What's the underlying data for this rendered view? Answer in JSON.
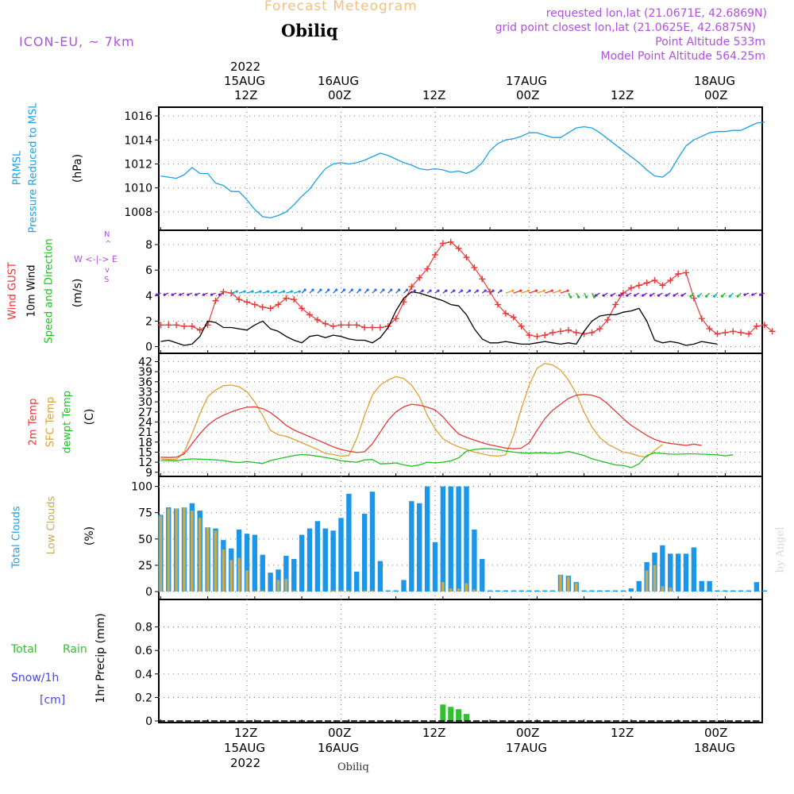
{
  "header": {
    "product_title": "Forecast Meteogram",
    "location": "Obiliq",
    "model": "ICON-EU, ~ 7km",
    "requested": "requested lon,lat (21.0671E, 42.6869N)",
    "grid_point": "grid point closest lon,lat (21.0625E, 42.6875N)",
    "point_altitude": "Point Altitude 533m",
    "model_altitude": "Model Point Altitude 564.25m"
  },
  "time_axis": {
    "top_year": "2022",
    "top_date_labels": [
      "15AUG",
      "16AUG",
      "",
      "17AUG",
      "",
      "18AUG"
    ],
    "top_hour_labels": [
      "12Z",
      "00Z",
      "12Z",
      "00Z",
      "12Z",
      "00Z"
    ],
    "bottom_hour_labels": [
      "12Z",
      "00Z",
      "12Z",
      "00Z",
      "12Z",
      "00Z"
    ],
    "bottom_date_labels": [
      "15AUG",
      "16AUG",
      "",
      "17AUG",
      "",
      "18AUG"
    ],
    "bottom_year": "2022",
    "footer_location": "Obiliq",
    "tick_hours": [
      0,
      12,
      24,
      36,
      48,
      60
    ]
  },
  "labels": {
    "prmsl_1": "PRMSL",
    "prmsl_2": "Pressure Reduced to MSL",
    "prmsl_unit": "(hPa)",
    "wind_gust": "Wind GUST",
    "wind_10m": "10m Wind",
    "wind_dir": "Speed and Direction",
    "wind_unit": "(m/s)",
    "compass_n": "N",
    "compass_s": "S",
    "compass_row": "W <-|-> E",
    "compass_top": "^",
    "compass_bottom": "v",
    "temp_2m": "2m Temp",
    "temp_sfc": "SFC Temp",
    "temp_dew": "dewpt Temp",
    "temp_unit": "(C)",
    "clouds_total": "Total Clouds",
    "clouds_low": "Low Clouds",
    "clouds_unit": "(%)",
    "rain_total": "Total",
    "rain_rain": "Rain",
    "snow": "Snow/1h",
    "snow_unit": "[cm]",
    "precip": "1hr Precip (mm)",
    "watermark": "by Angel"
  },
  "colors": {
    "pressure": "#1ca0e6",
    "gust": "#e83838",
    "wind": "#000000",
    "temp2m": "#e83838",
    "tempsfc": "#e0a030",
    "dewpt": "#22c022",
    "total_clouds": "#1c96e8",
    "low_clouds": "#c8aa50",
    "rain": "#32c032",
    "snow": "#4646f0",
    "purple": "#b050e0",
    "title_orange": "#f0c080",
    "grid": "#888888"
  },
  "chart_data": [
    {
      "type": "line",
      "title": "PRMSL Pressure Reduced to MSL",
      "ylabel": "(hPa)",
      "ylim": [
        1006.8,
        1016.4
      ],
      "yticks": [
        1008,
        1010,
        1012,
        1014,
        1016
      ],
      "x_hours_start": -11,
      "x_step_hours": 1,
      "series": [
        {
          "name": "PRMSL",
          "values": [
            1011.0,
            1010.9,
            1010.8,
            1011.1,
            1011.7,
            1011.2,
            1011.2,
            1010.4,
            1010.2,
            1009.7,
            1009.7,
            1009.0,
            1008.2,
            1007.6,
            1007.5,
            1007.7,
            1008.0,
            1008.6,
            1009.3,
            1009.9,
            1010.8,
            1011.6,
            1012.0,
            1012.1,
            1012.0,
            1012.1,
            1012.3,
            1012.6,
            1012.9,
            1012.7,
            1012.4,
            1012.1,
            1011.9,
            1011.6,
            1011.5,
            1011.6,
            1011.5,
            1011.3,
            1011.4,
            1011.2,
            1011.5,
            1012.1,
            1013.1,
            1013.7,
            1014.0,
            1014.1,
            1014.3,
            1014.6,
            1014.6,
            1014.4,
            1014.2,
            1014.2,
            1014.6,
            1015.0,
            1015.1,
            1015.0,
            1014.6,
            1014.1,
            1013.6,
            1013.1,
            1012.6,
            1012.1,
            1011.5,
            1011.0,
            1010.9,
            1011.4,
            1012.5,
            1013.5,
            1014.0,
            1014.3,
            1014.6,
            1014.7,
            1014.7,
            1014.8,
            1014.8,
            1015.1,
            1015.4,
            1015.5
          ]
        }
      ]
    },
    {
      "type": "line",
      "title": "Wind GUST / 10m Wind Speed and Direction",
      "ylabel": "(m/s)",
      "ylim": [
        -0.4,
        9.0
      ],
      "yticks": [
        0,
        2,
        4,
        6,
        8
      ],
      "x_hours_start": -11,
      "x_step_hours": 1,
      "series": [
        {
          "name": "Wind GUST",
          "marker": "+",
          "values": [
            1.7,
            1.7,
            1.7,
            1.6,
            1.6,
            1.3,
            1.7,
            3.6,
            4.3,
            4.2,
            3.7,
            3.5,
            3.3,
            3.1,
            3.0,
            3.3,
            3.8,
            3.7,
            3.0,
            2.5,
            2.1,
            1.8,
            1.6,
            1.7,
            1.7,
            1.7,
            1.5,
            1.5,
            1.5,
            1.6,
            2.2,
            3.5,
            4.7,
            5.4,
            6.1,
            7.2,
            8.1,
            8.2,
            7.7,
            7.0,
            6.2,
            5.3,
            4.3,
            3.3,
            2.6,
            2.3,
            1.6,
            0.9,
            0.8,
            0.9,
            1.1,
            1.2,
            1.3,
            1.1,
            1.0,
            1.1,
            1.4,
            2.1,
            3.3,
            4.2,
            4.6,
            4.8,
            5.0,
            5.2,
            4.8,
            5.2,
            5.7,
            5.8,
            3.8,
            2.2,
            1.4,
            1.0,
            1.1,
            1.2,
            1.1,
            1.0,
            1.6,
            1.7,
            1.2
          ]
        },
        {
          "name": "10m Wind",
          "values": [
            0.4,
            0.5,
            0.3,
            0.1,
            0.2,
            0.8,
            2.0,
            1.9,
            1.5,
            1.5,
            1.4,
            1.3,
            1.7,
            2.0,
            1.4,
            1.2,
            0.8,
            0.5,
            0.3,
            0.8,
            0.9,
            0.7,
            0.9,
            0.8,
            0.6,
            0.5,
            0.5,
            0.3,
            0.7,
            1.5,
            2.8,
            3.8,
            4.3,
            4.2,
            4.0,
            3.8,
            3.6,
            3.3,
            3.2,
            2.5,
            1.4,
            0.6,
            0.3,
            0.3,
            0.4,
            0.3,
            0.2,
            0.2,
            0.3,
            0.4,
            0.3,
            0.2,
            0.3,
            0.2,
            1.2,
            2.0,
            2.4,
            2.5,
            2.5,
            2.7,
            2.8,
            3.0,
            2.0,
            0.5,
            0.3,
            0.4,
            0.3,
            0.1,
            0.2,
            0.4,
            0.3,
            0.2
          ]
        }
      ]
    },
    {
      "type": "line",
      "title": "2m Temp / SFC Temp / dewpt Temp",
      "ylabel": "(C)",
      "ylim": [
        8.0,
        44.0
      ],
      "yticks": [
        9,
        12,
        15,
        18,
        21,
        24,
        27,
        30,
        33,
        36,
        39,
        42
      ],
      "x_hours_start": -11,
      "x_step_hours": 1,
      "series": [
        {
          "name": "2m Temp",
          "values": [
            13.5,
            13.4,
            13.5,
            14.5,
            17.5,
            20.5,
            23.0,
            24.8,
            26.0,
            27.0,
            27.8,
            28.4,
            28.5,
            28.0,
            26.8,
            25.0,
            23.0,
            21.6,
            20.6,
            19.6,
            18.6,
            17.6,
            16.6,
            15.8,
            15.3,
            14.9,
            15.1,
            17.5,
            21.0,
            24.5,
            27.0,
            28.5,
            29.3,
            29.0,
            28.4,
            27.6,
            25.5,
            22.8,
            20.4,
            19.4,
            18.6,
            17.8,
            17.2,
            16.7,
            16.2,
            16.0,
            16.2,
            17.8,
            21.5,
            25.0,
            27.5,
            29.3,
            31.0,
            32.0,
            32.2,
            32.0,
            31.2,
            29.4,
            27.2,
            25.0,
            23.0,
            21.5,
            20.0,
            18.8,
            18.0,
            17.6,
            17.3,
            17.0,
            17.4,
            17.0
          ]
        },
        {
          "name": "SFC Temp",
          "values": [
            13.0,
            12.8,
            12.8,
            15.0,
            20.5,
            26.5,
            31.5,
            33.5,
            34.8,
            35.0,
            34.5,
            33.0,
            30.0,
            26.0,
            21.5,
            20.2,
            19.7,
            18.8,
            17.8,
            16.8,
            15.8,
            14.6,
            14.3,
            13.8,
            14.0,
            19.0,
            26.0,
            32.0,
            35.0,
            36.5,
            37.5,
            37.0,
            35.0,
            31.5,
            26.0,
            22.0,
            19.0,
            17.6,
            16.6,
            15.8,
            15.0,
            14.5,
            14.0,
            13.8,
            14.2,
            20.0,
            28.0,
            35.0,
            40.0,
            41.5,
            41.0,
            39.5,
            36.5,
            32.5,
            27.0,
            22.5,
            19.3,
            17.4,
            16.2,
            15.0,
            14.6,
            13.8,
            13.5,
            15.5,
            17.3
          ]
        },
        {
          "name": "dewpt Temp",
          "values": [
            12.5,
            12.5,
            12.4,
            12.8,
            13.0,
            12.9,
            12.8,
            12.7,
            12.5,
            12.1,
            11.9,
            12.2,
            11.9,
            11.6,
            12.5,
            13.0,
            13.5,
            14.0,
            14.3,
            14.1,
            13.8,
            13.4,
            13.0,
            12.4,
            12.2,
            12.0,
            12.7,
            12.8,
            11.5,
            11.6,
            11.8,
            11.2,
            10.8,
            11.2,
            12.0,
            11.8,
            12.0,
            12.4,
            13.3,
            15.3,
            15.8,
            16.0,
            16.0,
            15.8,
            15.3,
            15.0,
            14.8,
            14.7,
            14.8,
            14.8,
            14.6,
            14.8,
            15.2,
            14.6,
            14.0,
            13.0,
            12.4,
            11.8,
            11.2,
            11.0,
            10.4,
            11.5,
            14.0,
            14.8,
            14.6,
            14.4,
            14.4,
            14.5,
            14.5,
            14.4,
            14.3,
            14.2,
            13.9,
            14.2
          ]
        }
      ]
    },
    {
      "type": "bar",
      "title": "Total Clouds / Low Clouds",
      "ylabel": "(%)",
      "ylim": [
        -6,
        108
      ],
      "yticks": [
        0,
        25,
        50,
        75,
        100
      ],
      "x_hours_start": -11,
      "x_step_hours": 1,
      "series": [
        {
          "name": "Total Clouds",
          "values": [
            73,
            80,
            79,
            80,
            84,
            77,
            61,
            60,
            49,
            41,
            59,
            55,
            54,
            35,
            18,
            21,
            34,
            31,
            54,
            60,
            67,
            60,
            58,
            70,
            93,
            19,
            74,
            95,
            29,
            0,
            0,
            11,
            86,
            84,
            100,
            47,
            100,
            100,
            100,
            100,
            59,
            31,
            0,
            0,
            0,
            0,
            0,
            0,
            0,
            0,
            0,
            16,
            15,
            9,
            0,
            0,
            0,
            0,
            0,
            0,
            3,
            10,
            28,
            37,
            44,
            36,
            36,
            36,
            42,
            10,
            10,
            0,
            0,
            0,
            0,
            0,
            9,
            0
          ]
        },
        {
          "name": "Low Clouds",
          "values": [
            72,
            79,
            79,
            80,
            77,
            70,
            61,
            58,
            40,
            30,
            32,
            20,
            1,
            1,
            0,
            11,
            12,
            1,
            0,
            0,
            0,
            0,
            1,
            1,
            1,
            0,
            1,
            1,
            0,
            0,
            0,
            0,
            0,
            0,
            0,
            0,
            9,
            3,
            3,
            8,
            2,
            0,
            0,
            0,
            0,
            0,
            0,
            0,
            0,
            0,
            0,
            16,
            14,
            8,
            0,
            0,
            0,
            0,
            0,
            0,
            0,
            0,
            20,
            25,
            5,
            4,
            0,
            0,
            0,
            0,
            0,
            0,
            0,
            0,
            0,
            0,
            0,
            0
          ]
        }
      ]
    },
    {
      "type": "bar",
      "title": "Total Rain / Snow 1hr Precip",
      "ylabel": "1hr Precip (mm)",
      "ylim": [
        0,
        1.0
      ],
      "yticks": [
        0,
        0.2,
        0.4,
        0.6,
        0.8
      ],
      "x_hours_start": -11,
      "x_step_hours": 1,
      "series": [
        {
          "name": "Total Rain",
          "values": [
            0,
            0,
            0,
            0,
            0,
            0,
            0,
            0,
            0,
            0,
            0,
            0,
            0,
            0,
            0,
            0,
            0,
            0,
            0,
            0,
            0,
            0,
            0,
            0,
            0,
            0,
            0,
            0,
            0,
            0,
            0,
            0,
            0,
            0,
            0,
            0,
            0.14,
            0.12,
            0.1,
            0.06,
            0,
            0,
            0,
            0,
            0,
            0,
            0,
            0,
            0,
            0,
            0,
            0,
            0,
            0,
            0,
            0,
            0,
            0,
            0,
            0,
            0,
            0,
            0,
            0,
            0,
            0,
            0,
            0,
            0,
            0,
            0,
            0,
            0,
            0,
            0,
            0,
            0,
            0
          ]
        },
        {
          "name": "Snow/1h",
          "values": []
        }
      ]
    }
  ]
}
